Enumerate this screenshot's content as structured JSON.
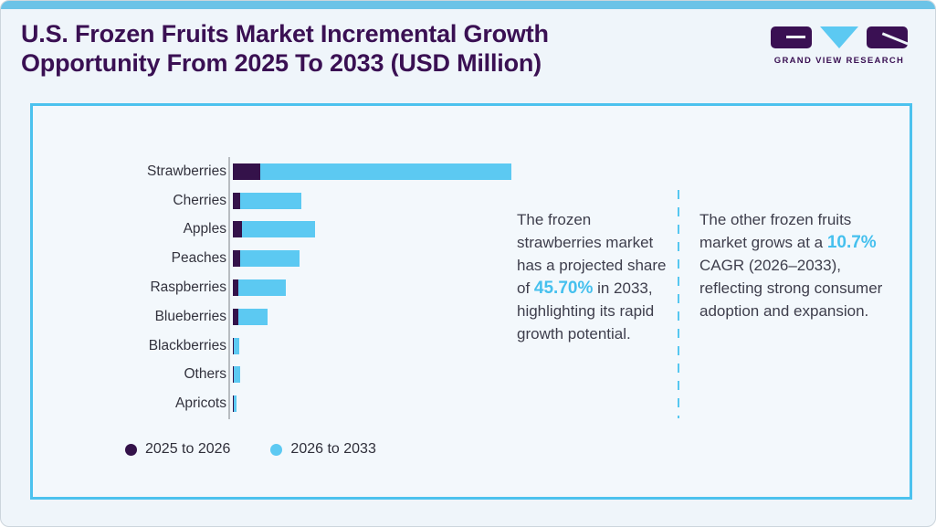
{
  "page": {
    "background": "#eff5fa",
    "accent_bar_color": "#6cc3e7",
    "card_border_color": "#4cc2ee"
  },
  "header": {
    "title_line1": "U.S. Frozen Fruits Market Incremental Growth",
    "title_line2": "Opportunity From 2025 To 2033 (USD Million)",
    "title_color": "#3a1053"
  },
  "logo": {
    "text": "GRAND VIEW RESEARCH",
    "dark_color": "#3a1053",
    "blue_color": "#5cc9f2",
    "shapes": [
      "g-block",
      "v-triangle",
      "r-block"
    ]
  },
  "chart_data": {
    "type": "bar",
    "orientation": "horizontal",
    "stacked": true,
    "title": "U.S. Frozen Fruits Market Incremental Growth Opportunity From 2025 To 2033 (USD Million)",
    "xlabel": "",
    "ylabel": "",
    "value_axis_shown": false,
    "value_note": "No numeric axis in figure; values are relative bar lengths (px) estimated from the chart",
    "categories": [
      "Strawberries",
      "Cherries",
      "Apples",
      "Peaches",
      "Raspberries",
      "Blueberries",
      "Blackberries",
      "Others",
      "Apricots"
    ],
    "series": [
      {
        "name": "2025 to 2026",
        "color": "#34124a",
        "values": [
          30,
          8,
          10,
          8,
          6,
          6,
          1,
          1,
          1
        ]
      },
      {
        "name": "2026 to 2033",
        "color": "#5cc9f2",
        "values": [
          275,
          67,
          80,
          65,
          52,
          32,
          6,
          7,
          3
        ]
      }
    ],
    "grid": false,
    "legend_position": "bottom-left",
    "axis_line_color": "#b7bcc1"
  },
  "legend": {
    "items": [
      {
        "label": "2025 to 2026",
        "color": "#34124a"
      },
      {
        "label": "2026 to 2033",
        "color": "#5cc9f2"
      }
    ]
  },
  "annotations": {
    "highlight_color": "#45c0ee",
    "callout1": {
      "pre": "The frozen strawberries market has a projected share of ",
      "highlight": "45.70%",
      "post": " in 2033, highlighting its rapid growth potential."
    },
    "callout2": {
      "pre": "The other frozen fruits market grows at a ",
      "highlight": "10.7%",
      "post": " CAGR (2026–2033), reflecting strong consumer adoption and expansion."
    }
  }
}
